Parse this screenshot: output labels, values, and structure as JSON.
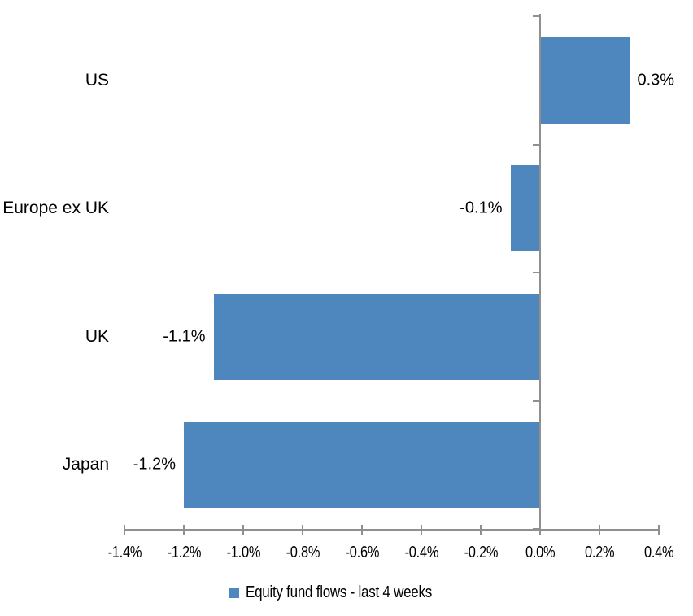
{
  "chart_data": {
    "type": "bar",
    "orientation": "horizontal",
    "title": "",
    "xlabel": "",
    "ylabel": "",
    "categories": [
      "US",
      "Europe ex UK",
      "UK",
      "Japan"
    ],
    "series": [
      {
        "name": "Equity fund flows - last 4 weeks",
        "values": [
          0.3,
          -0.1,
          -1.1,
          -1.2
        ],
        "data_labels": [
          "0.3%",
          "-0.1%",
          "-1.1%",
          "-1.2%"
        ]
      }
    ],
    "xlim": [
      -1.4,
      0.4
    ],
    "x_tick_values": [
      -1.4,
      -1.2,
      -1.0,
      -0.8,
      -0.6,
      -0.4,
      -0.2,
      0.0,
      0.2,
      0.4
    ],
    "x_tick_labels": [
      "-1.4%",
      "-1.2%",
      "-1.0%",
      "-0.8%",
      "-0.6%",
      "-0.4%",
      "-0.2%",
      "0.0%",
      "0.2%",
      "0.4%"
    ],
    "grid": false,
    "legend_position": "bottom",
    "colors": {
      "bar": "#4E86BE",
      "axis": "#8F8F8F",
      "text": "#000000",
      "background": "#FFFFFF"
    }
  },
  "legend": {
    "label": "Equity fund flows - last 4 weeks"
  }
}
